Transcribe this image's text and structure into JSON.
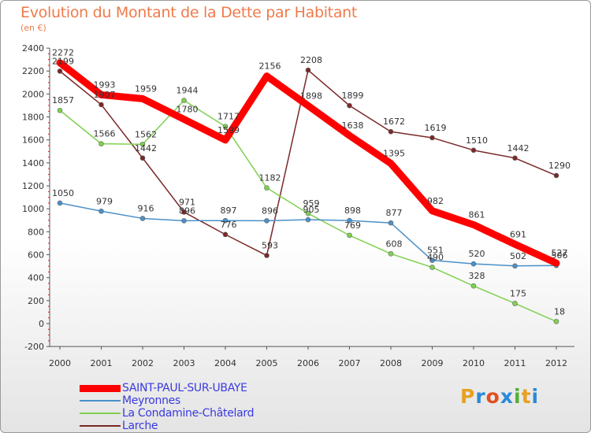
{
  "title": "Evolution du Montant de la Dette par Habitant",
  "subtitle": "(en €)",
  "brand": {
    "text": "Proxiti",
    "colors": [
      "#e8a020",
      "#2a8ad8",
      "#e05020",
      "#2a8ad8",
      "#50b030",
      "#e8a020",
      "#2a8ad8"
    ]
  },
  "chart_data": {
    "type": "line",
    "x": [
      "2000",
      "2001",
      "2002",
      "2003",
      "2004",
      "2005",
      "2006",
      "2007",
      "2008",
      "2009",
      "2010",
      "2011",
      "2012"
    ],
    "ylim": [
      -200,
      2400
    ],
    "yticks": [
      "-200",
      "0",
      "200",
      "400",
      "600",
      "800",
      "1000",
      "1200",
      "1400",
      "1600",
      "1800",
      "2000",
      "2200",
      "2400"
    ],
    "grid": false,
    "legend": "bottom-left",
    "series": [
      {
        "name": "SAINT-PAUL-SUR-UBAYE",
        "color": "#ff0000",
        "values": [
          2272,
          1993,
          1959,
          1780,
          1599,
          2156,
          1898,
          1638,
          1395,
          982,
          861,
          691,
          527
        ],
        "labels": [
          "2272",
          "1993",
          "1959",
          "1780",
          "1599",
          "2156",
          "1898",
          "1638",
          "1395",
          "982",
          "861",
          "691",
          "527"
        ]
      },
      {
        "name": "Meyronnes",
        "color": "#4a90c8",
        "values": [
          1050,
          979,
          916,
          896,
          897,
          896,
          905,
          898,
          877,
          551,
          520,
          502,
          506
        ],
        "labels": [
          "1050",
          "979",
          "916",
          "896",
          "897",
          "896",
          "905",
          "898",
          "877",
          "551",
          "520",
          "502",
          "506"
        ]
      },
      {
        "name": "La Condamine-Châtelard",
        "color": "#80d050",
        "values": [
          1857,
          1566,
          1562,
          1944,
          1717,
          1182,
          959,
          769,
          608,
          490,
          328,
          175,
          18
        ],
        "labels": [
          "1857",
          "1566",
          "1562",
          "1944",
          "1717",
          "1182",
          "959",
          "769",
          "608",
          "490",
          "328",
          "175",
          "18"
        ]
      },
      {
        "name": "Larche",
        "color": "#7a2828",
        "values": [
          2199,
          1907,
          1442,
          971,
          776,
          593,
          2208,
          1899,
          1672,
          1619,
          1510,
          1442,
          1290
        ],
        "labels": [
          "2199",
          "1907",
          "1442",
          "971",
          "776",
          "593",
          "2208",
          "1899",
          "1672",
          "1619",
          "1510",
          "1442",
          "1290"
        ]
      }
    ]
  }
}
